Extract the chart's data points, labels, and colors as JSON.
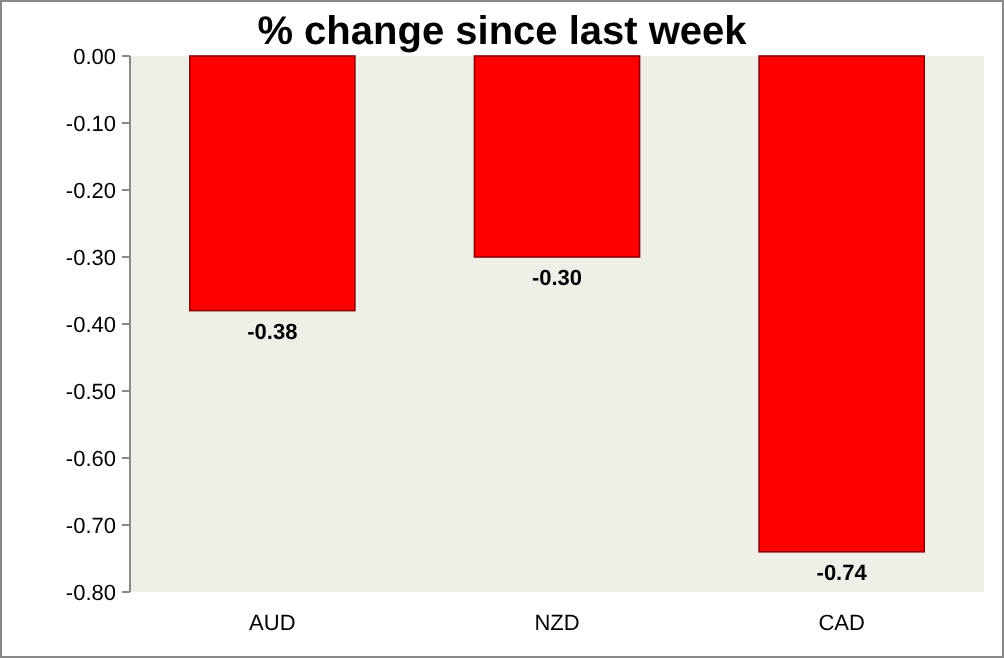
{
  "chart_data": {
    "type": "bar",
    "title": "% change since last week",
    "categories": [
      "AUD",
      "NZD",
      "CAD"
    ],
    "values": [
      -0.38,
      -0.3,
      -0.74
    ],
    "value_labels": [
      "-0.38",
      "-0.30",
      "-0.74"
    ],
    "color": "#ff0000",
    "ylim": [
      -0.8,
      0
    ],
    "yticks": [
      {
        "value": 0,
        "label": "0.00"
      },
      {
        "value": -0.1,
        "label": "-0.10"
      },
      {
        "value": -0.2,
        "label": "-0.20"
      },
      {
        "value": -0.3,
        "label": "-0.30"
      },
      {
        "value": -0.4,
        "label": "-0.40"
      },
      {
        "value": -0.5,
        "label": "-0.50"
      },
      {
        "value": -0.6,
        "label": "-0.60"
      },
      {
        "value": -0.7,
        "label": "-0.70"
      },
      {
        "value": -0.8,
        "label": "-0.80"
      }
    ],
    "grid": false
  }
}
